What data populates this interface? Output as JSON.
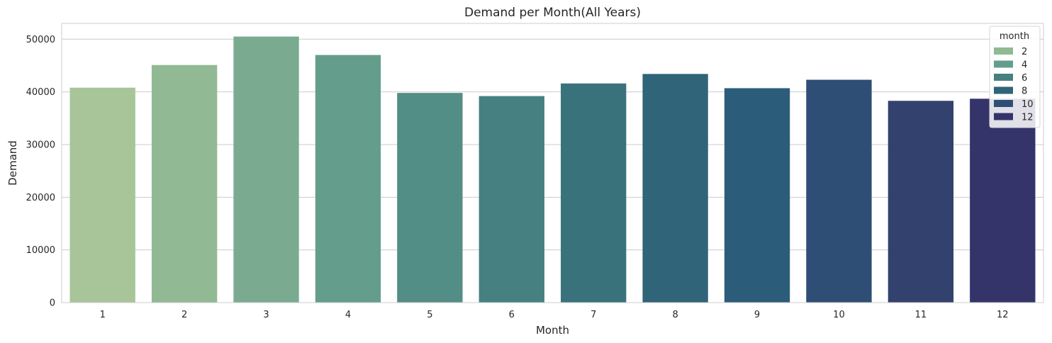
{
  "chart_data": {
    "type": "bar",
    "title": "Demand per Month(All Years)",
    "xlabel": "Month",
    "ylabel": "Demand",
    "categories": [
      "1",
      "2",
      "3",
      "4",
      "5",
      "6",
      "7",
      "8",
      "9",
      "10",
      "11",
      "12"
    ],
    "values": [
      40800,
      45100,
      50500,
      47000,
      39800,
      39200,
      41600,
      43400,
      40700,
      42300,
      38300,
      38700
    ],
    "ylim": [
      0,
      53000
    ],
    "yticks": [
      0,
      10000,
      20000,
      30000,
      40000,
      50000
    ],
    "ytick_labels": [
      "0",
      "10000",
      "20000",
      "30000",
      "40000",
      "50000"
    ],
    "grid": "horizontal",
    "bar_colors": [
      "#a7c598",
      "#90b994",
      "#7aab91",
      "#659d8c",
      "#538e86",
      "#478081",
      "#3a727c",
      "#2f6479",
      "#2b5c7a",
      "#2e4e75",
      "#32416d",
      "#35346a"
    ],
    "legend": {
      "title": "month",
      "placement": "top-right",
      "entries": [
        {
          "label": "2",
          "color": "#90b994"
        },
        {
          "label": "4",
          "color": "#659d8c"
        },
        {
          "label": "6",
          "color": "#478081"
        },
        {
          "label": "8",
          "color": "#2f6479"
        },
        {
          "label": "10",
          "color": "#2e4e75"
        },
        {
          "label": "12",
          "color": "#35346a"
        }
      ]
    }
  }
}
